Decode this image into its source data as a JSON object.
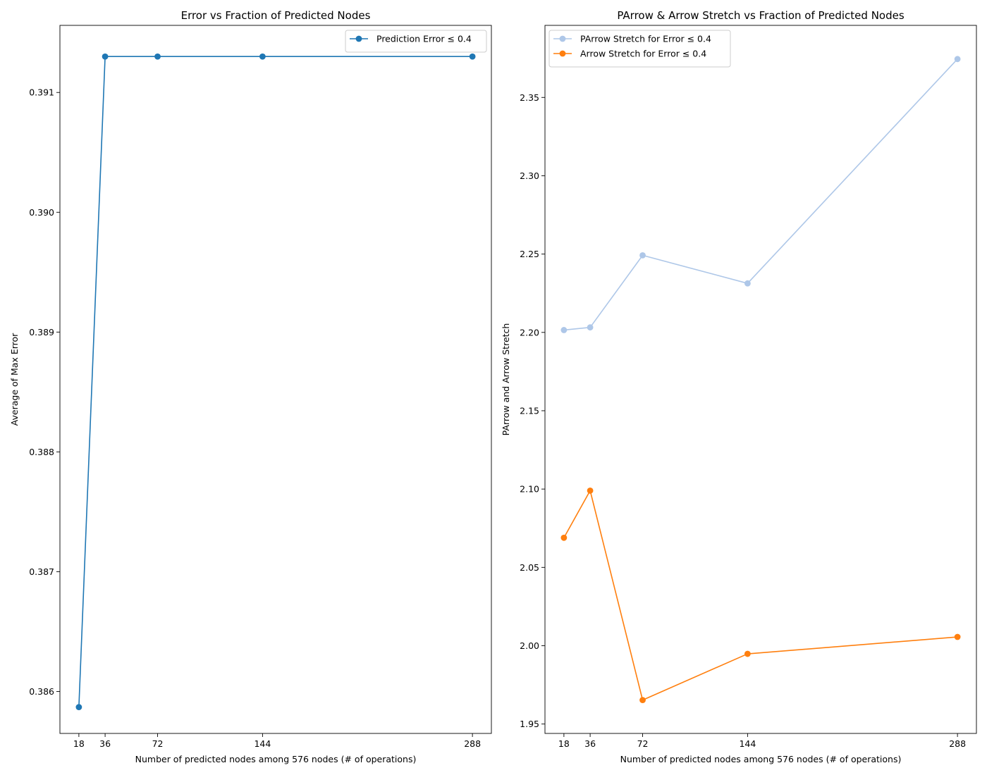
{
  "chart_data": [
    {
      "type": "line",
      "title": "Error vs Fraction of Predicted Nodes",
      "xlabel": "Number of predicted nodes among 576 nodes (# of operations)",
      "ylabel": "Average of Max Error",
      "x": [
        18,
        36,
        72,
        144,
        288
      ],
      "xticks": [
        "18",
        "36",
        "72",
        "144",
        "288"
      ],
      "xlim": [
        5,
        301
      ],
      "ylim": [
        0.38565,
        0.39156
      ],
      "yticks": [
        "0.386",
        "0.387",
        "0.388",
        "0.389",
        "0.390",
        "0.391"
      ],
      "grid": false,
      "legend_position": "upper right",
      "series": [
        {
          "name": "Prediction Error ≤ 0.4",
          "color": "#1f77b4",
          "values": [
            0.38587,
            0.3913,
            0.3913,
            0.3913,
            0.3913
          ]
        }
      ]
    },
    {
      "type": "line",
      "title": "PArrow & Arrow Stretch vs Fraction of Predicted Nodes",
      "xlabel": "Number of predicted nodes among 576 nodes (# of operations)",
      "ylabel": "PArrow and Arrow Stretch",
      "x": [
        18,
        36,
        72,
        144,
        288
      ],
      "xticks": [
        "18",
        "36",
        "72",
        "144",
        "288"
      ],
      "xlim": [
        5,
        301
      ],
      "ylim": [
        1.944,
        2.396
      ],
      "yticks": [
        "1.95",
        "2.00",
        "2.05",
        "2.10",
        "2.15",
        "2.20",
        "2.25",
        "2.30",
        "2.35"
      ],
      "grid": false,
      "legend_position": "upper left",
      "series": [
        {
          "name": "PArrow Stretch for Error ≤ 0.4",
          "color": "#aec7e8",
          "values": [
            2.2015,
            2.2032,
            2.2492,
            2.2313,
            2.3745
          ]
        },
        {
          "name": "Arrow Stretch for Error ≤ 0.4",
          "color": "#ff7f0e",
          "values": [
            2.0689,
            2.099,
            1.9653,
            1.9948,
            2.0056
          ]
        }
      ]
    }
  ]
}
